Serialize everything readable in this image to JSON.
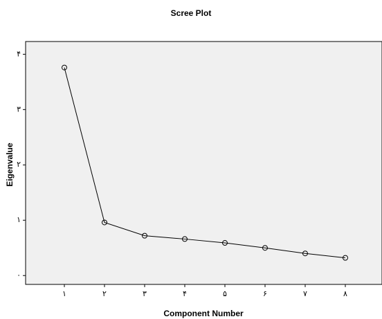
{
  "chart_data": {
    "type": "line",
    "title": "Scree Plot",
    "x_label": "Component Number",
    "y_label": "Eigenvalue",
    "categories": [
      "۱",
      "۲",
      "۳",
      "۴",
      "۵",
      "۶",
      "۷",
      "۸"
    ],
    "values": [
      3.76,
      0.96,
      0.72,
      0.66,
      0.59,
      0.5,
      0.4,
      0.32
    ],
    "color": "#000000",
    "ylim": [
      -0.16,
      4.23
    ],
    "yticks": [
      {
        "value": 0,
        "label": "۰"
      },
      {
        "value": 1,
        "label": "۱"
      },
      {
        "value": 2,
        "label": "۲"
      },
      {
        "value": 3,
        "label": "۳"
      },
      {
        "value": 4,
        "label": "۴"
      }
    ]
  }
}
